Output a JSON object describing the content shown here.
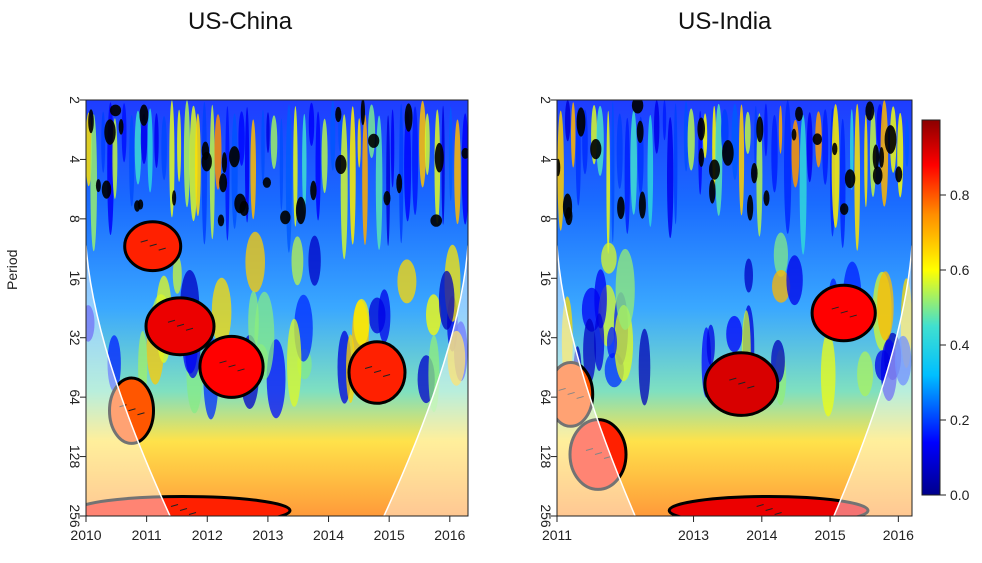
{
  "chart_data": [
    {
      "type": "heatmap",
      "title": "US-China",
      "xlabel": "",
      "ylabel": "Period",
      "x_ticks": [
        "2010",
        "2011",
        "2012",
        "2013",
        "2014",
        "2015",
        "2016"
      ],
      "x_tick_values": [
        2010.0,
        2011.0,
        2012.0,
        2013.0,
        2014.0,
        2015.0,
        2016.0
      ],
      "xlim": [
        2010.0,
        2016.3
      ],
      "y_ticks": [
        "2",
        "4",
        "8",
        "16",
        "32",
        "64",
        "128",
        "256"
      ],
      "y_tick_values": [
        2,
        4,
        8,
        16,
        32,
        64,
        128,
        256
      ],
      "ylim": [
        2,
        256
      ],
      "y_scale": "log2",
      "y_reversed": true,
      "significant_regions": [
        {
          "x_center": 2011.55,
          "period_center": 28,
          "description": "high coherence",
          "coherence": 0.9
        },
        {
          "x_center": 2012.4,
          "period_center": 45,
          "description": "high coherence",
          "coherence": 0.88
        },
        {
          "x_center": 2011.1,
          "period_center": 11,
          "description": "high coherence",
          "coherence": 0.85
        },
        {
          "x_center": 2014.8,
          "period_center": 48,
          "description": "high coherence",
          "coherence": 0.85
        },
        {
          "x_center": 2011.6,
          "period_center": 240,
          "description": "high coherence",
          "coherence": 0.85
        },
        {
          "x_center": 2010.75,
          "period_center": 75,
          "description": "high coherence",
          "coherence": 0.8
        }
      ]
    },
    {
      "type": "heatmap",
      "title": "US-India",
      "xlabel": "",
      "ylabel": "",
      "x_ticks": [
        "2011",
        "2013",
        "2014",
        "2015",
        "2016"
      ],
      "x_tick_values": [
        2011.0,
        2013.0,
        2014.0,
        2015.0,
        2016.0
      ],
      "xlim": [
        2011.0,
        2016.2
      ],
      "y_ticks": [
        "2",
        "4",
        "8",
        "16",
        "32",
        "64",
        "128",
        "256"
      ],
      "y_tick_values": [
        2,
        4,
        8,
        16,
        32,
        64,
        128,
        256
      ],
      "ylim": [
        2,
        256
      ],
      "y_scale": "log2",
      "y_reversed": true,
      "significant_regions": [
        {
          "x_center": 2013.7,
          "period_center": 55,
          "description": "high coherence",
          "coherence": 0.92
        },
        {
          "x_center": 2015.2,
          "period_center": 24,
          "description": "high coherence",
          "coherence": 0.88
        },
        {
          "x_center": 2014.1,
          "period_center": 240,
          "description": "high coherence",
          "coherence": 0.9
        },
        {
          "x_center": 2011.6,
          "period_center": 125,
          "description": "high coherence",
          "coherence": 0.85
        },
        {
          "x_center": 2011.2,
          "period_center": 62,
          "description": "high coherence",
          "coherence": 0.8
        }
      ]
    }
  ],
  "colorbar": {
    "ticks": [
      "0.0",
      "0.2",
      "0.4",
      "0.6",
      "0.8"
    ],
    "tick_values": [
      0.0,
      0.2,
      0.4,
      0.6,
      0.8
    ],
    "range": [
      0,
      1
    ],
    "colormap": [
      "#00008b",
      "#0000ff",
      "#00bfff",
      "#40e0d0",
      "#ffff00",
      "#ff8c00",
      "#ff0000",
      "#8b0000"
    ]
  }
}
